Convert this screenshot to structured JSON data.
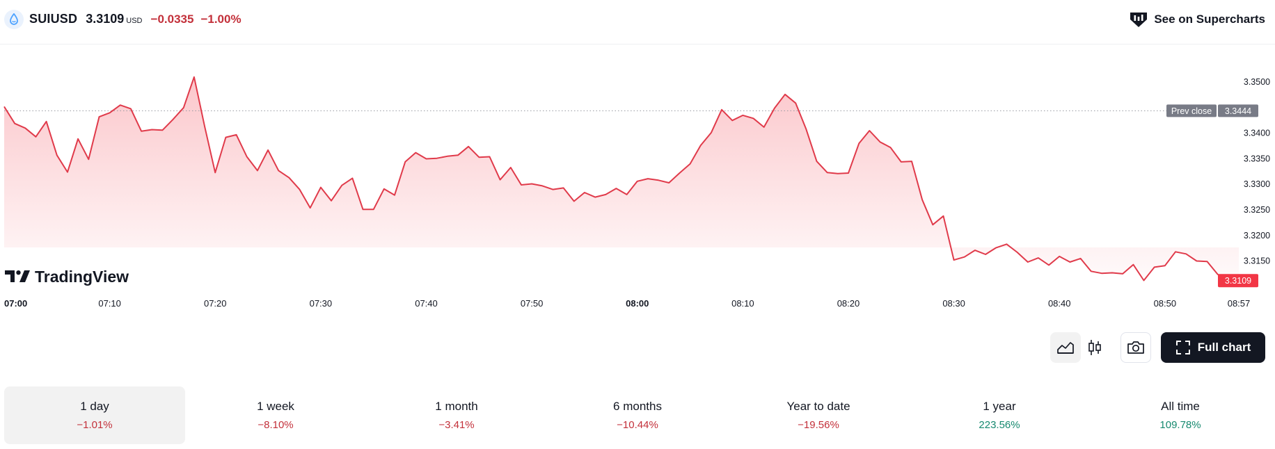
{
  "header": {
    "symbol": "SUIUSD",
    "price": "3.3109",
    "currency": "USD",
    "change": "−0.0335",
    "change_pct": "−1.00%",
    "see_on_label": "See on Supercharts"
  },
  "brand": {
    "name": "TradingView"
  },
  "chart_data": {
    "type": "area",
    "x_ticks": [
      "07:00",
      "07:10",
      "07:20",
      "07:30",
      "07:40",
      "07:50",
      "08:00",
      "08:10",
      "08:20",
      "08:30",
      "08:40",
      "08:50",
      "08:57"
    ],
    "y_ticks": [
      "3.3500",
      "3.3400",
      "3.3350",
      "3.3300",
      "3.3250",
      "3.3200",
      "3.3150"
    ],
    "ylim": [
      3.3095,
      3.356
    ],
    "prev_close": {
      "label": "Prev close",
      "value": 3.3444,
      "value_label": "3.3444"
    },
    "last_price": {
      "value": 3.3109,
      "value_label": "3.3109"
    },
    "series": [
      {
        "x_minutes": [
          0,
          1,
          2,
          3,
          4,
          5,
          6,
          7,
          8,
          9,
          10,
          11,
          12,
          13,
          14,
          15,
          16,
          17,
          18,
          19,
          20,
          21,
          22,
          23,
          24,
          25,
          26,
          27,
          28,
          29,
          30,
          31,
          32,
          33,
          34,
          35,
          36,
          37,
          38,
          39,
          40,
          41,
          42,
          43,
          44,
          45,
          46,
          47,
          48,
          49,
          50,
          51,
          52,
          53,
          54,
          55,
          56,
          57,
          58,
          59,
          60,
          61,
          62,
          63,
          64,
          65,
          66,
          67,
          68,
          69,
          70,
          71,
          72,
          73,
          74,
          75,
          76,
          77,
          78,
          79,
          80,
          81,
          82,
          83,
          84,
          85,
          86,
          87,
          88,
          89,
          90,
          91,
          92,
          93,
          94,
          95,
          96,
          97,
          98,
          99,
          100,
          101,
          102,
          103,
          104,
          105,
          106,
          107,
          108,
          109,
          110,
          111,
          112,
          113,
          114,
          115,
          116,
          117
        ],
        "values": [
          3.3452,
          3.3419,
          3.341,
          3.3393,
          3.3423,
          3.3357,
          3.3324,
          3.3389,
          3.3349,
          3.3432,
          3.344,
          3.3455,
          3.3448,
          3.3404,
          3.3407,
          3.3406,
          3.3427,
          3.345,
          3.351,
          3.3413,
          3.3323,
          3.3392,
          3.3397,
          3.3354,
          3.3327,
          3.3367,
          3.3327,
          3.3313,
          3.329,
          3.3254,
          3.3294,
          3.3268,
          3.3298,
          3.3312,
          3.3251,
          3.3251,
          3.3291,
          3.3279,
          3.3344,
          3.3362,
          3.335,
          3.3351,
          3.3355,
          3.3357,
          3.3374,
          3.3353,
          3.3354,
          3.3309,
          3.3333,
          3.3299,
          3.3301,
          3.3297,
          3.329,
          3.3293,
          3.3267,
          3.3284,
          3.3275,
          3.328,
          3.3292,
          3.328,
          3.3306,
          3.3311,
          3.3308,
          3.3303,
          3.3322,
          3.334,
          3.3376,
          3.3401,
          3.3446,
          3.3425,
          3.3435,
          3.3429,
          3.3412,
          3.3449,
          3.3476,
          3.3459,
          3.3408,
          3.3345,
          3.3323,
          3.3321,
          3.3322,
          3.338,
          3.3405,
          3.3383,
          3.3372,
          3.3344,
          3.3345,
          3.327,
          3.3221,
          3.3238,
          3.3152,
          3.3158,
          3.3171,
          3.3163,
          3.3176,
          3.3183,
          3.3167,
          3.3148,
          3.3156,
          3.3142,
          3.3159,
          3.3148,
          3.3155,
          3.313,
          3.3126,
          3.3127,
          3.3125,
          3.3143,
          3.3112,
          3.3138,
          3.3141,
          3.3168,
          3.3164,
          3.315,
          3.3149,
          3.3124,
          3.3113,
          3.3109
        ]
      }
    ]
  },
  "toolbar": {
    "full_chart_label": "Full chart"
  },
  "periods": [
    {
      "label": "1 day",
      "value": "−1.01%",
      "sign": "neg",
      "active": true
    },
    {
      "label": "1 week",
      "value": "−8.10%",
      "sign": "neg",
      "active": false
    },
    {
      "label": "1 month",
      "value": "−3.41%",
      "sign": "neg",
      "active": false
    },
    {
      "label": "6 months",
      "value": "−10.44%",
      "sign": "neg",
      "active": false
    },
    {
      "label": "Year to date",
      "value": "−19.56%",
      "sign": "neg",
      "active": false
    },
    {
      "label": "1 year",
      "value": "223.56%",
      "sign": "pos",
      "active": false
    },
    {
      "label": "All time",
      "value": "109.78%",
      "sign": "pos",
      "active": false
    }
  ],
  "colors": {
    "line": "#e03a4a",
    "negative": "#c3303a",
    "positive": "#16896f",
    "last_badge": "#f23645",
    "prev_badge": "#787b86"
  }
}
